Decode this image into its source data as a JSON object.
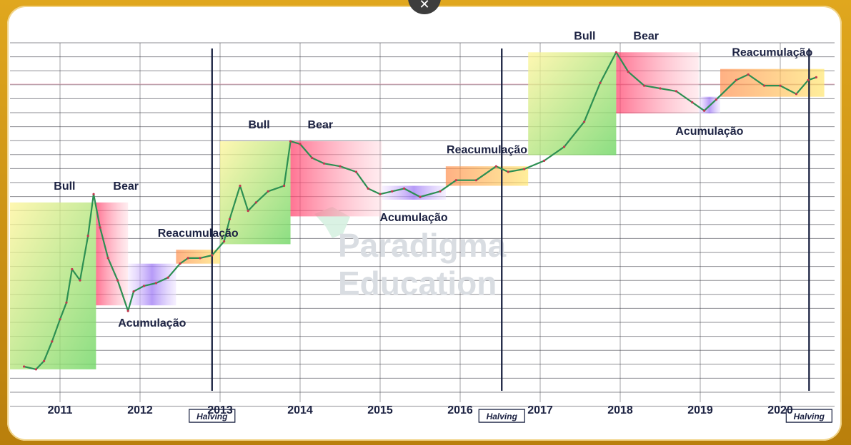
{
  "window": {
    "close_icon": "close-icon"
  },
  "watermark": {
    "line1": "Paradigma",
    "line2": "Education"
  },
  "chart_data": {
    "type": "line",
    "title": "",
    "xlabel": "",
    "ylabel": "",
    "x_ticks": [
      "2011",
      "2012",
      "2013",
      "2014",
      "2015",
      "2016",
      "2017",
      "2018",
      "2019",
      "2020"
    ],
    "xlim": [
      2010.6,
      2020.6
    ],
    "ylim": [
      0,
      100
    ],
    "scale": "log (unlabeled)",
    "grid": true,
    "series": [
      {
        "points": [
          [
            2010.55,
            13
          ],
          [
            2010.7,
            12
          ],
          [
            2010.8,
            15
          ],
          [
            2010.9,
            22
          ],
          [
            2011.0,
            30
          ],
          [
            2011.08,
            36
          ],
          [
            2011.15,
            48
          ],
          [
            2011.25,
            44
          ],
          [
            2011.35,
            60
          ],
          [
            2011.42,
            75
          ],
          [
            2011.5,
            63
          ],
          [
            2011.6,
            52
          ],
          [
            2011.72,
            44
          ],
          [
            2011.85,
            33
          ],
          [
            2011.92,
            40
          ],
          [
            2012.05,
            42
          ],
          [
            2012.2,
            43
          ],
          [
            2012.35,
            45
          ],
          [
            2012.5,
            50
          ],
          [
            2012.6,
            52
          ],
          [
            2012.75,
            52
          ],
          [
            2012.9,
            53
          ],
          [
            2013.05,
            58
          ],
          [
            2013.12,
            66
          ],
          [
            2013.25,
            78
          ],
          [
            2013.35,
            69
          ],
          [
            2013.45,
            72
          ],
          [
            2013.6,
            76
          ],
          [
            2013.8,
            78
          ],
          [
            2013.88,
            94
          ],
          [
            2014.0,
            93
          ],
          [
            2014.15,
            88
          ],
          [
            2014.3,
            86
          ],
          [
            2014.5,
            85
          ],
          [
            2014.7,
            83
          ],
          [
            2014.85,
            77
          ],
          [
            2015.0,
            75
          ],
          [
            2015.15,
            76
          ],
          [
            2015.3,
            77
          ],
          [
            2015.5,
            74
          ],
          [
            2015.75,
            76
          ],
          [
            2015.95,
            80
          ],
          [
            2016.2,
            80
          ],
          [
            2016.45,
            85
          ],
          [
            2016.6,
            83
          ],
          [
            2016.8,
            84
          ],
          [
            2017.05,
            87
          ],
          [
            2017.3,
            92
          ],
          [
            2017.55,
            101
          ],
          [
            2017.75,
            115
          ],
          [
            2017.95,
            126
          ],
          [
            2018.1,
            119
          ],
          [
            2018.3,
            114
          ],
          [
            2018.5,
            113
          ],
          [
            2018.7,
            112
          ],
          [
            2018.9,
            108
          ],
          [
            2019.05,
            105
          ],
          [
            2019.2,
            109
          ],
          [
            2019.45,
            116
          ],
          [
            2019.6,
            118
          ],
          [
            2019.8,
            114
          ],
          [
            2020.0,
            114
          ],
          [
            2020.2,
            111
          ],
          [
            2020.35,
            116
          ],
          [
            2020.45,
            117
          ]
        ]
      }
    ],
    "phases": [
      {
        "label": "Bull",
        "start": 2010.3,
        "end": 2011.45,
        "low": 12,
        "high": 72,
        "color": "#9be27a"
      },
      {
        "label": "Bear",
        "start": 2011.45,
        "end": 2011.85,
        "low": 35,
        "high": 72,
        "color": "#ff4d73"
      },
      {
        "label": "Acumulação",
        "start": 2011.85,
        "end": 2012.45,
        "low": 35,
        "high": 50,
        "color": "#a27ef0"
      },
      {
        "label": "Reacumulação",
        "start": 2012.45,
        "end": 2013.0,
        "low": 50,
        "high": 55,
        "color": "#ff9a4c"
      },
      {
        "label": "Bull",
        "start": 2013.0,
        "end": 2013.88,
        "low": 57,
        "high": 94,
        "color": "#9be27a"
      },
      {
        "label": "Bear",
        "start": 2013.88,
        "end": 2015.02,
        "low": 67,
        "high": 94,
        "color": "#ff4d73"
      },
      {
        "label": "Acumulação",
        "start": 2015.02,
        "end": 2015.82,
        "low": 73,
        "high": 78,
        "color": "#a27ef0"
      },
      {
        "label": "Reacumulação",
        "start": 2015.82,
        "end": 2016.85,
        "low": 78,
        "high": 85,
        "color": "#ff9a4c"
      },
      {
        "label": "Bull",
        "start": 2016.85,
        "end": 2017.95,
        "low": 89,
        "high": 126,
        "color": "#9be27a"
      },
      {
        "label": "Bear",
        "start": 2017.95,
        "end": 2018.98,
        "low": 104,
        "high": 126,
        "color": "#ff4d73"
      },
      {
        "label": "Acumulação",
        "start": 2018.98,
        "end": 2019.25,
        "low": 104,
        "high": 110,
        "color": "#a27ef0"
      },
      {
        "label": "Reacumulação",
        "start": 2019.25,
        "end": 2020.55,
        "low": 110,
        "high": 120,
        "color": "#ff9a4c"
      }
    ],
    "halvings": [
      {
        "label": "Halving",
        "x": 2012.9
      },
      {
        "label": "Halving",
        "x": 2016.52
      },
      {
        "label": "Halving",
        "x": 2020.36
      }
    ]
  }
}
